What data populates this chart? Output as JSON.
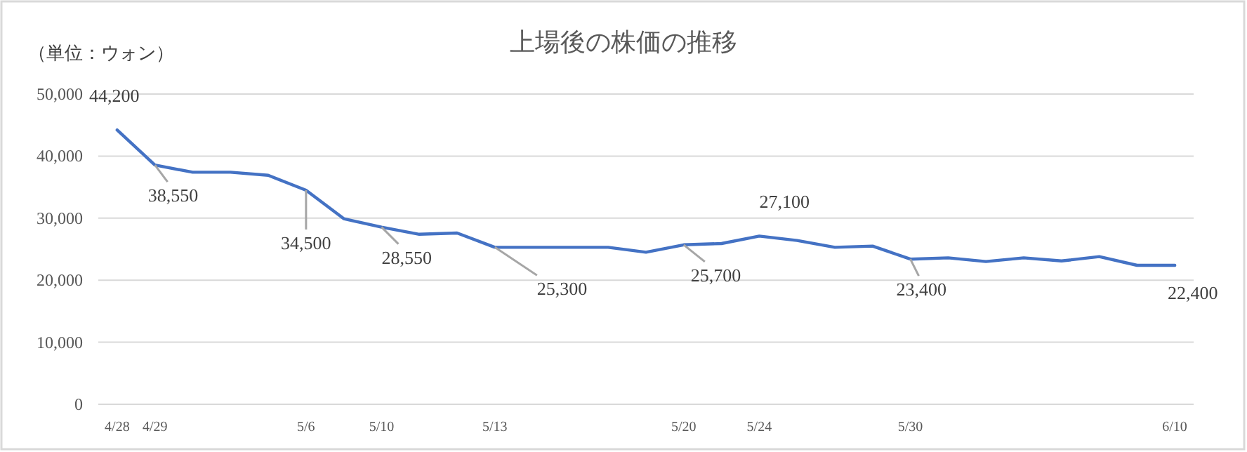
{
  "chart_data": {
    "type": "line",
    "title": "上場後の株価の推移",
    "ylabel": "（単位：ウォン）",
    "categories": [
      "4/28",
      "4/29",
      null,
      null,
      null,
      "5/6",
      null,
      "5/10",
      null,
      null,
      "5/13",
      null,
      null,
      null,
      null,
      "5/20",
      null,
      "5/24",
      null,
      null,
      null,
      "5/30",
      null,
      null,
      null,
      null,
      null,
      null,
      "6/10"
    ],
    "series": [
      {
        "color": "#4472c4",
        "values": [
          44200,
          38550,
          37400,
          37400,
          36900,
          34500,
          29900,
          28550,
          27400,
          27600,
          25300,
          25300,
          25300,
          25300,
          24500,
          25700,
          25900,
          27100,
          26400,
          25300,
          25500,
          23400,
          23600,
          23000,
          23600,
          23100,
          23800,
          22400,
          22400
        ],
        "value_labels": [
          "44,200",
          "38,550",
          null,
          null,
          null,
          "34,500",
          null,
          "28,550",
          null,
          null,
          "25,300",
          null,
          null,
          null,
          null,
          "25,700",
          null,
          "27,100",
          null,
          null,
          null,
          "23,400",
          null,
          null,
          null,
          null,
          null,
          null,
          "22,400"
        ]
      }
    ],
    "ylim": [
      0,
      50000
    ],
    "yticks": [
      {
        "value": 0,
        "label": "0"
      },
      {
        "value": 10000,
        "label": "10,000"
      },
      {
        "value": 20000,
        "label": "20,000"
      },
      {
        "value": 30000,
        "label": "30,000"
      },
      {
        "value": 40000,
        "label": "40,000"
      },
      {
        "value": 50000,
        "label": "50,000"
      }
    ],
    "grid": "y",
    "marker": "none",
    "line_style": "solid"
  }
}
